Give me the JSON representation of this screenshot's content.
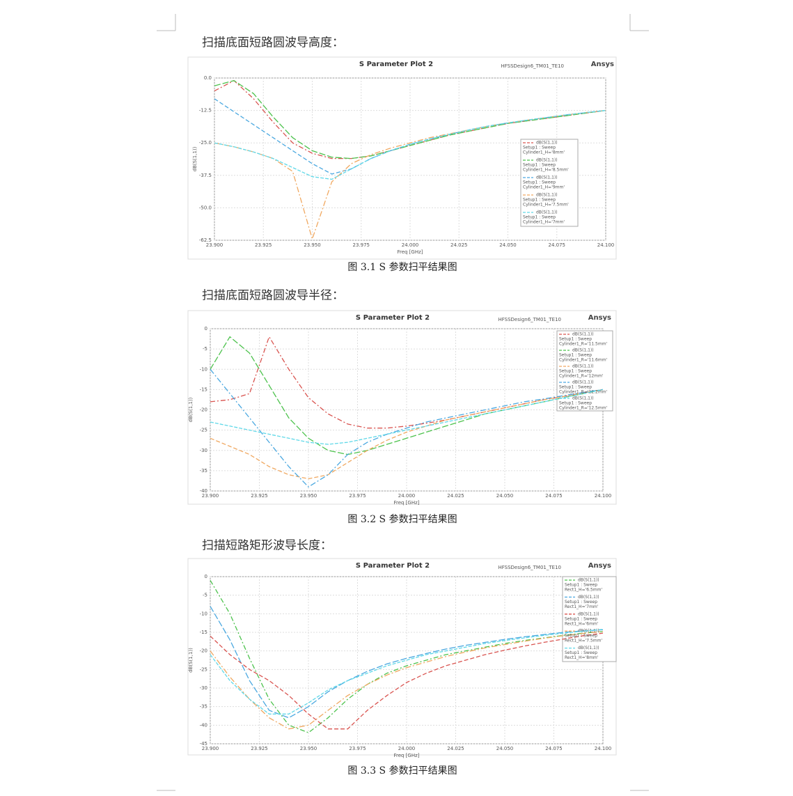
{
  "headings": [
    "扫描底面短路圆波导高度：",
    "扫描底面短路圆波导半径：",
    "扫描短路矩形波导长度："
  ],
  "captions": [
    "图 3.1 S 参数扫平结果图",
    "图 3.2 S 参数扫平结果图",
    "图 3.3 S 参数扫平结果图"
  ],
  "chart_data": [
    {
      "type": "line",
      "title": "S Parameter Plot 2",
      "design": "HFSSDesign6_TM01_TE10",
      "brand": "Ansys",
      "x_label": "Freq [GHz]",
      "y_label": "dB(S(1,1))",
      "grid": true,
      "x": [
        23.9,
        23.91,
        23.92,
        23.93,
        23.94,
        23.95,
        23.96,
        23.97,
        23.98,
        23.99,
        24.0,
        24.01,
        24.02,
        24.03,
        24.04,
        24.05,
        24.06,
        24.07,
        24.08,
        24.09,
        24.1
      ],
      "xlim": [
        23.9,
        24.1
      ],
      "xticks": [
        {
          "value": 23.9,
          "label": "23.900"
        },
        23.925,
        {
          "value": 23.95,
          "label": "23.950"
        },
        23.975,
        {
          "value": 24.0,
          "label": "24.000"
        },
        24.025,
        {
          "value": 24.05,
          "label": "24.050"
        },
        24.075,
        {
          "value": 24.1,
          "label": "24.100"
        }
      ],
      "ylim": [
        -62.5,
        0
      ],
      "yticks": [
        {
          "value": 0,
          "label": "0.0"
        },
        -12.5,
        {
          "value": -25,
          "label": "-25.0"
        },
        -37.5,
        {
          "value": -50,
          "label": "-50.0"
        },
        -62.5
      ],
      "series": [
        {
          "name": "dB(S(1,1))",
          "setup": "Setup1 : Sweep",
          "variation": "Cylinder1_H='8mm'",
          "color": "#d9534f",
          "values": [
            -5,
            -1,
            -8,
            -17,
            -25,
            -29,
            -31,
            -31,
            -30,
            -28,
            -26,
            -24,
            -22,
            -20.5,
            -19,
            -17.5,
            -16.5,
            -15.5,
            -14.5,
            -13.5,
            -12.5
          ]
        },
        {
          "name": "dB(S(1,1))",
          "setup": "Setup1 : Sweep",
          "variation": "Cylinder1_H='8.5mm'",
          "color": "#4cc24c",
          "values": [
            -3,
            -1,
            -6,
            -15,
            -23,
            -28,
            -30.5,
            -31,
            -30,
            -28,
            -26,
            -24,
            -22,
            -20.5,
            -19,
            -17.5,
            -16.5,
            -15.5,
            -14.5,
            -13.5,
            -12.5
          ]
        },
        {
          "name": "dB(S(1,1))",
          "setup": "Setup1 : Sweep",
          "variation": "Cylinder1_H='9mm'",
          "color": "#4aa8e0",
          "values": [
            -8,
            -13,
            -18,
            -23,
            -28,
            -33,
            -37,
            -35,
            -31,
            -28,
            -25.5,
            -23.5,
            -21.7,
            -20,
            -18.5,
            -17.3,
            -16.2,
            -15.2,
            -14.2,
            -13.3,
            -12.5
          ]
        },
        {
          "name": "dB(S(1,1))",
          "setup": "Setup1 : Sweep",
          "variation": "Cylinder1_H='7.5mm'",
          "color": "#f0a860",
          "values": [
            -25,
            -26.5,
            -28.5,
            -31,
            -36,
            -62,
            -40,
            -33,
            -29.5,
            -27,
            -25,
            -23,
            -21.5,
            -20,
            -18.5,
            -17.3,
            -16.2,
            -15.2,
            -14.2,
            -13.3,
            -12.5
          ]
        },
        {
          "name": "dB(S(1,1))",
          "setup": "Setup1 : Sweep",
          "variation": "Cylinder1_H='7mm'",
          "color": "#5fd8e8",
          "values": [
            -25,
            -26.5,
            -28.5,
            -31,
            -34.5,
            -38,
            -39,
            -35,
            -31,
            -28,
            -25.5,
            -23.5,
            -21.7,
            -20,
            -18.5,
            -17.3,
            -16.2,
            -15.2,
            -14.2,
            -13.3,
            -12.5
          ]
        }
      ]
    },
    {
      "type": "line",
      "title": "S Parameter Plot 2",
      "design": "HFSSDesign6_TM01_TE10",
      "brand": "Ansys",
      "x_label": "Freq [GHz]",
      "y_label": "dB(S(1,1))",
      "grid": true,
      "x": [
        23.9,
        23.91,
        23.92,
        23.93,
        23.94,
        23.95,
        23.96,
        23.97,
        23.98,
        23.99,
        24.0,
        24.01,
        24.02,
        24.03,
        24.04,
        24.05,
        24.06,
        24.07,
        24.08,
        24.09,
        24.1
      ],
      "xlim": [
        23.9,
        24.1
      ],
      "xticks": [
        {
          "value": 23.9,
          "label": "23.900"
        },
        23.925,
        {
          "value": 23.95,
          "label": "23.950"
        },
        23.975,
        {
          "value": 24.0,
          "label": "24.000"
        },
        24.025,
        {
          "value": 24.05,
          "label": "24.050"
        },
        24.075,
        {
          "value": 24.1,
          "label": "24.100"
        }
      ],
      "ylim": [
        -40,
        0
      ],
      "yticks": [
        0,
        -5,
        -10,
        -15,
        -20,
        -25,
        -30,
        -35,
        -40
      ],
      "series": [
        {
          "name": "dB(S(1,1))",
          "setup": "Setup1 : Sweep",
          "variation": "Cylinder1_R='11.5mm'",
          "color": "#d9534f",
          "values": [
            -18,
            -17.5,
            -16,
            -2,
            -10,
            -17,
            -21,
            -23.5,
            -24.5,
            -24.5,
            -24,
            -23.3,
            -22.5,
            -21.5,
            -20.5,
            -19.5,
            -18.5,
            -17.5,
            -16.7,
            -15.8,
            -15
          ]
        },
        {
          "name": "dB(S(1,1))",
          "setup": "Setup1 : Sweep",
          "variation": "Cylinder1_R='11.6mm'",
          "color": "#4cc24c",
          "values": [
            -10,
            -2,
            -6,
            -14,
            -22,
            -27,
            -30,
            -31,
            -30,
            -28.5,
            -27,
            -25.5,
            -24,
            -22.5,
            -21,
            -20,
            -19,
            -18,
            -17,
            -16,
            -15
          ]
        },
        {
          "name": "dB(S(1,1))",
          "setup": "Setup1 : Sweep",
          "variation": "Cylinder1_R='12mm'",
          "color": "#f0a860",
          "values": [
            -27,
            -29,
            -31,
            -34,
            -36,
            -37,
            -36,
            -33,
            -30,
            -27.5,
            -25.5,
            -24,
            -22.5,
            -21.5,
            -20.5,
            -19.5,
            -18.5,
            -17.5,
            -16.7,
            -15.8,
            -15
          ]
        },
        {
          "name": "dB(S(1,1))",
          "setup": "Setup1 : Sweep",
          "variation": "Cylinder1_R='12.2mm'",
          "color": "#4aa8e0",
          "values": [
            -10,
            -16,
            -22,
            -28,
            -34,
            -39,
            -36,
            -31,
            -28,
            -26,
            -24.5,
            -23,
            -22,
            -21,
            -20,
            -19,
            -18,
            -17.3,
            -16.5,
            -15.7,
            -15
          ]
        },
        {
          "name": "dB(S(1,1))",
          "setup": "Setup1 : Sweep",
          "variation": "Cylinder1_R='12.5mm'",
          "color": "#5fd8e8",
          "values": [
            -23,
            -24,
            -25,
            -26,
            -27,
            -28,
            -28.5,
            -28,
            -27,
            -26,
            -25,
            -24,
            -23,
            -22,
            -21,
            -20,
            -19,
            -18,
            -17,
            -16,
            -15
          ]
        }
      ]
    },
    {
      "type": "line",
      "title": "S Parameter Plot 2",
      "design": "HFSSDesign6_TM01_TE10",
      "brand": "Ansys",
      "x_label": "Freq [GHz]",
      "y_label": "dB(S(1,1))",
      "grid": true,
      "x": [
        23.9,
        23.91,
        23.92,
        23.93,
        23.94,
        23.95,
        23.96,
        23.97,
        23.98,
        23.99,
        24.0,
        24.01,
        24.02,
        24.03,
        24.04,
        24.05,
        24.06,
        24.07,
        24.08,
        24.09,
        24.1
      ],
      "xlim": [
        23.9,
        24.1
      ],
      "xticks": [
        {
          "value": 23.9,
          "label": "23.900"
        },
        23.925,
        {
          "value": 23.95,
          "label": "23.950"
        },
        23.975,
        {
          "value": 24.0,
          "label": "24.000"
        },
        24.025,
        {
          "value": 24.05,
          "label": "24.050"
        },
        24.075,
        {
          "value": 24.1,
          "label": "24.100"
        }
      ],
      "ylim": [
        -45,
        0
      ],
      "yticks": [
        0,
        -5,
        -10,
        -15,
        -20,
        -25,
        -30,
        -35,
        -40,
        -45
      ],
      "series": [
        {
          "name": "dB(S(1,1))",
          "setup": "Setup1 : Sweep",
          "variation": "Rect1_H='6.5mm'",
          "color": "#4cc24c",
          "values": [
            -1,
            -10,
            -22,
            -33,
            -40,
            -42,
            -38,
            -33,
            -29,
            -26,
            -24,
            -22.5,
            -21,
            -20,
            -19,
            -18,
            -17.2,
            -16.5,
            -15.8,
            -15.2,
            -14.8
          ]
        },
        {
          "name": "dB(S(1,1))",
          "setup": "Setup1 : Sweep",
          "variation": "Rect1_H='7mm'",
          "color": "#4aa8e0",
          "values": [
            -8,
            -17,
            -28,
            -36,
            -38,
            -35,
            -31,
            -28,
            -25.5,
            -23.5,
            -22,
            -20.7,
            -19.5,
            -18.5,
            -17.7,
            -16.9,
            -16.2,
            -15.6,
            -15,
            -14.6,
            -14.3
          ]
        },
        {
          "name": "dB(S(1,1))",
          "setup": "Setup1 : Sweep",
          "variation": "Rect1_H='6mm'",
          "color": "#d9534f",
          "values": [
            -16,
            -21,
            -25,
            -28,
            -32,
            -37,
            -41,
            -41,
            -36,
            -32,
            -28.5,
            -26,
            -24,
            -22.5,
            -21,
            -19.8,
            -18.7,
            -17.7,
            -16.8,
            -15.9,
            -15.2
          ]
        },
        {
          "name": "dB(S(1,1))",
          "setup": "Setup1 : Sweep",
          "variation": "Rect1_H='7.5mm'",
          "color": "#f0a860",
          "values": [
            -20,
            -27,
            -33,
            -38,
            -41,
            -40,
            -36,
            -32,
            -29,
            -26.5,
            -24.5,
            -23,
            -21.5,
            -20.3,
            -19.2,
            -18.3,
            -17.4,
            -16.6,
            -15.9,
            -15.3,
            -14.8
          ]
        },
        {
          "name": "dB(S(1,1))",
          "setup": "Setup1 : Sweep",
          "variation": "Rect1_H='8mm'",
          "color": "#5fd8e8",
          "values": [
            -21,
            -28,
            -33,
            -37,
            -37,
            -34,
            -30.5,
            -28,
            -26,
            -24,
            -22.5,
            -21,
            -20,
            -19,
            -18,
            -17.2,
            -16.5,
            -15.8,
            -15.2,
            -14.7,
            -14.2
          ]
        }
      ]
    }
  ]
}
